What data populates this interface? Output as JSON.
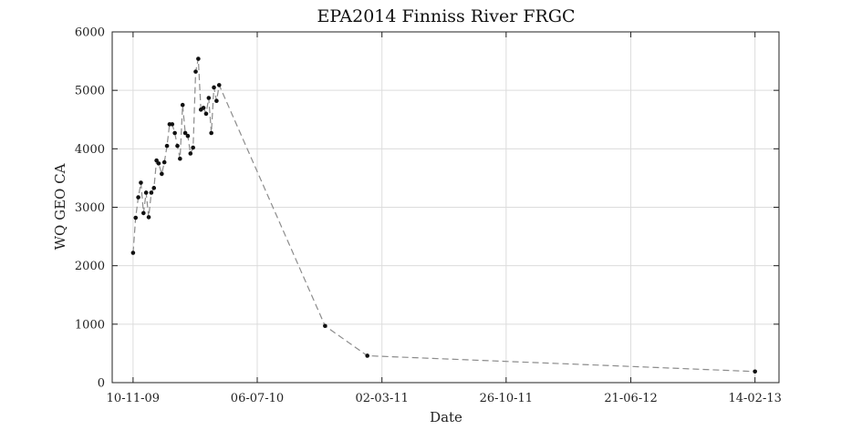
{
  "chart_data": {
    "type": "line",
    "title": "EPA2014 Finniss River FRGC",
    "xlabel": "Date",
    "ylabel": "WQ GEO CA",
    "x_is_date": true,
    "xlim": [
      "2009-10-01",
      "2013-04-01"
    ],
    "ylim": [
      0,
      6000
    ],
    "grid": true,
    "x_ticks": [
      {
        "date": "2009-11-10",
        "label": "10-11-09"
      },
      {
        "date": "2010-07-06",
        "label": "06-07-10"
      },
      {
        "date": "2011-03-02",
        "label": "02-03-11"
      },
      {
        "date": "2011-10-26",
        "label": "26-10-11"
      },
      {
        "date": "2012-06-21",
        "label": "21-06-12"
      },
      {
        "date": "2013-02-14",
        "label": "14-02-13"
      }
    ],
    "y_ticks": [
      0,
      1000,
      2000,
      3000,
      4000,
      5000,
      6000
    ],
    "series": [
      {
        "color": "#111111",
        "line_color": "#8c8c8c",
        "points": [
          {
            "x": "2009-11-10",
            "y": 2220
          },
          {
            "x": "2009-11-15",
            "y": 2820
          },
          {
            "x": "2009-11-20",
            "y": 3170
          },
          {
            "x": "2009-11-25",
            "y": 3420
          },
          {
            "x": "2009-11-30",
            "y": 2900
          },
          {
            "x": "2009-12-05",
            "y": 3250
          },
          {
            "x": "2009-12-10",
            "y": 2830
          },
          {
            "x": "2009-12-15",
            "y": 3250
          },
          {
            "x": "2009-12-20",
            "y": 3330
          },
          {
            "x": "2009-12-25",
            "y": 3800
          },
          {
            "x": "2009-12-29",
            "y": 3750
          },
          {
            "x": "2010-01-04",
            "y": 3570
          },
          {
            "x": "2010-01-09",
            "y": 3770
          },
          {
            "x": "2010-01-14",
            "y": 4050
          },
          {
            "x": "2010-01-19",
            "y": 4420
          },
          {
            "x": "2010-01-24",
            "y": 4420
          },
          {
            "x": "2010-01-29",
            "y": 4270
          },
          {
            "x": "2010-02-03",
            "y": 4050
          },
          {
            "x": "2010-02-08",
            "y": 3830
          },
          {
            "x": "2010-02-13",
            "y": 4750
          },
          {
            "x": "2010-02-18",
            "y": 4270
          },
          {
            "x": "2010-02-23",
            "y": 4220
          },
          {
            "x": "2010-02-28",
            "y": 3920
          },
          {
            "x": "2010-03-05",
            "y": 4020
          },
          {
            "x": "2010-03-10",
            "y": 5320
          },
          {
            "x": "2010-03-15",
            "y": 5540
          },
          {
            "x": "2010-03-20",
            "y": 4670
          },
          {
            "x": "2010-03-25",
            "y": 4700
          },
          {
            "x": "2010-03-30",
            "y": 4600
          },
          {
            "x": "2010-04-04",
            "y": 4870
          },
          {
            "x": "2010-04-09",
            "y": 4270
          },
          {
            "x": "2010-04-14",
            "y": 5050
          },
          {
            "x": "2010-04-19",
            "y": 4820
          },
          {
            "x": "2010-04-24",
            "y": 5090
          },
          {
            "x": "2010-11-13",
            "y": 970
          },
          {
            "x": "2011-02-02",
            "y": 460
          },
          {
            "x": "2013-02-14",
            "y": 190
          }
        ]
      }
    ]
  }
}
